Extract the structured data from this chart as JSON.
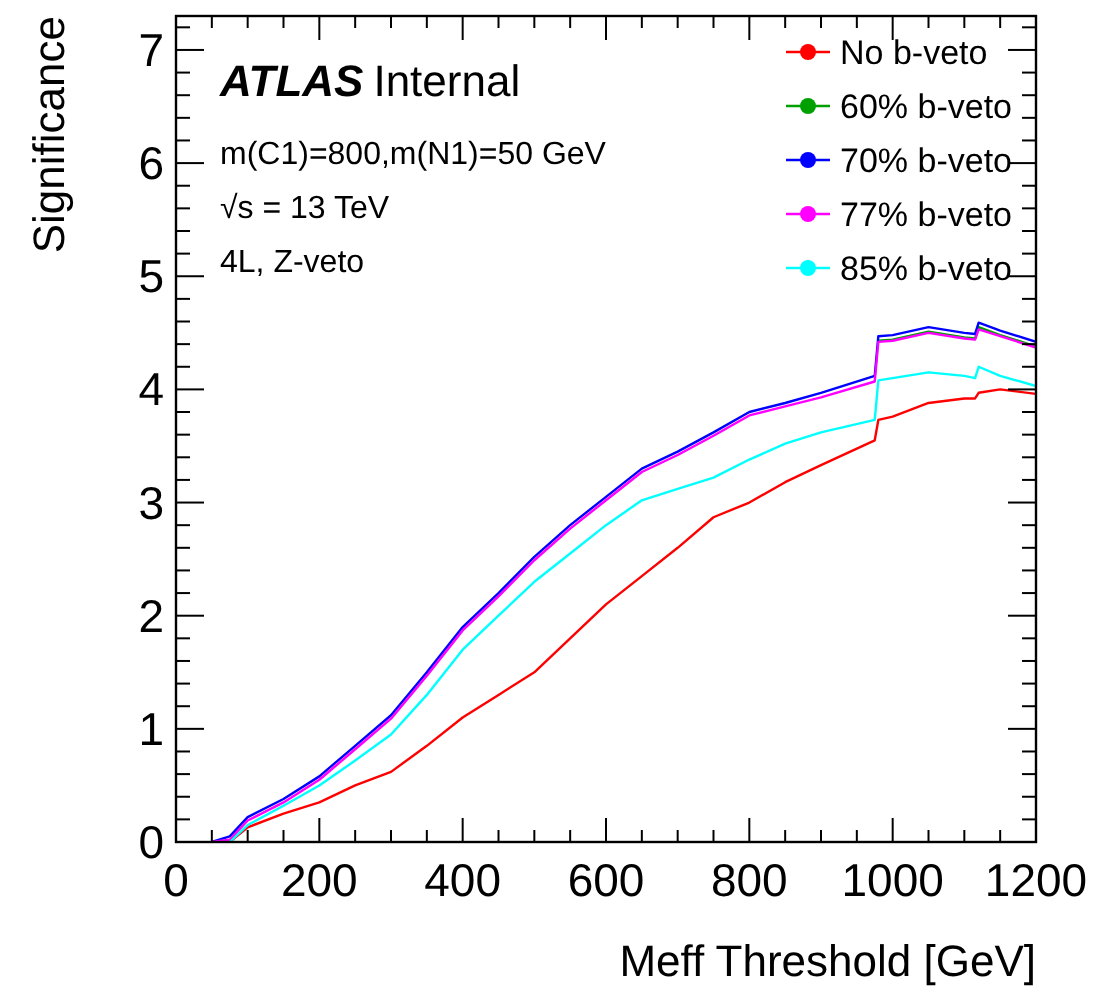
{
  "chart_data": {
    "type": "line",
    "xlabel": "Meff Threshold [GeV]",
    "ylabel": "Significance",
    "annotations": [
      "ATLAS Internal",
      "m(C1)=800,m(N1)=50 GeV",
      "√s = 13 TeV",
      "4L, Z-veto"
    ],
    "x": [
      50,
      75,
      100,
      150,
      200,
      250,
      300,
      350,
      400,
      450,
      500,
      550,
      600,
      650,
      700,
      750,
      800,
      850,
      900,
      975,
      980,
      1000,
      1050,
      1100,
      1115,
      1120,
      1150,
      1200
    ],
    "series": [
      {
        "name": "No b-veto",
        "color": "#ff0000",
        "values": [
          0,
          0,
          0.13,
          0.25,
          0.35,
          0.5,
          0.62,
          0.85,
          1.1,
          1.3,
          1.5,
          1.8,
          2.1,
          2.35,
          2.6,
          2.87,
          3.0,
          3.18,
          3.33,
          3.55,
          3.73,
          3.76,
          3.88,
          3.92,
          3.92,
          3.97,
          4.0,
          3.96
        ]
      },
      {
        "name": "60% b-veto",
        "color": "#00a000",
        "values": [
          null,
          null,
          null,
          null,
          null,
          null,
          null,
          null,
          null,
          null,
          null,
          null,
          null,
          null,
          null,
          null,
          null,
          null,
          null,
          null,
          4.43,
          4.44,
          4.51,
          4.46,
          4.45,
          4.55,
          4.48,
          4.38
        ]
      },
      {
        "name": "70% b-veto",
        "color": "#0000ff",
        "values": [
          0,
          0.05,
          0.22,
          0.38,
          0.58,
          0.85,
          1.12,
          1.5,
          1.9,
          2.2,
          2.52,
          2.8,
          3.05,
          3.3,
          3.45,
          3.62,
          3.8,
          3.88,
          3.97,
          4.12,
          4.47,
          4.48,
          4.55,
          4.5,
          4.49,
          4.59,
          4.52,
          4.42
        ]
      },
      {
        "name": "77% b-veto",
        "color": "#ff00ff",
        "values": [
          0,
          0.02,
          0.19,
          0.35,
          0.55,
          0.82,
          1.09,
          1.47,
          1.87,
          2.17,
          2.49,
          2.77,
          3.02,
          3.27,
          3.42,
          3.59,
          3.77,
          3.85,
          3.93,
          4.07,
          4.42,
          4.43,
          4.5,
          4.45,
          4.44,
          4.53,
          4.47,
          4.37
        ]
      },
      {
        "name": "85% b-veto",
        "color": "#00ffff",
        "values": [
          null,
          0,
          0.15,
          0.32,
          0.5,
          0.72,
          0.95,
          1.3,
          1.7,
          2.0,
          2.3,
          2.55,
          2.8,
          3.02,
          3.12,
          3.22,
          3.38,
          3.52,
          3.62,
          3.73,
          4.08,
          4.1,
          4.15,
          4.12,
          4.1,
          4.2,
          4.12,
          4.03
        ]
      }
    ],
    "xlim": [
      0,
      1200
    ],
    "ylim": [
      0,
      7.3
    ],
    "xticks": [
      0,
      {
        "value": 50,
        "label": null
      },
      {
        "value": 100,
        "label": null
      },
      {
        "value": 150,
        "label": null
      },
      200,
      {
        "value": 250,
        "label": null
      },
      {
        "value": 300,
        "label": null
      },
      {
        "value": 350,
        "label": null
      },
      400,
      {
        "value": 450,
        "label": null
      },
      {
        "value": 500,
        "label": null
      },
      {
        "value": 550,
        "label": null
      },
      600,
      {
        "value": 650,
        "label": null
      },
      {
        "value": 700,
        "label": null
      },
      {
        "value": 750,
        "label": null
      },
      800,
      {
        "value": 850,
        "label": null
      },
      {
        "value": 900,
        "label": null
      },
      {
        "value": 950,
        "label": null
      },
      1000,
      {
        "value": 1050,
        "label": null
      },
      {
        "value": 1100,
        "label": null
      },
      {
        "value": 1150,
        "label": null
      },
      1200
    ],
    "yticks": [
      0,
      {
        "value": 0.2,
        "label": null
      },
      {
        "value": 0.4,
        "label": null
      },
      {
        "value": 0.6,
        "label": null
      },
      {
        "value": 0.8,
        "label": null
      },
      1,
      {
        "value": 1.2,
        "label": null
      },
      {
        "value": 1.4,
        "label": null
      },
      {
        "value": 1.6,
        "label": null
      },
      {
        "value": 1.8,
        "label": null
      },
      2,
      {
        "value": 2.2,
        "label": null
      },
      {
        "value": 2.4,
        "label": null
      },
      {
        "value": 2.6,
        "label": null
      },
      {
        "value": 2.8,
        "label": null
      },
      3,
      {
        "value": 3.2,
        "label": null
      },
      {
        "value": 3.4,
        "label": null
      },
      {
        "value": 3.6,
        "label": null
      },
      {
        "value": 3.8,
        "label": null
      },
      4,
      {
        "value": 4.2,
        "label": null
      },
      {
        "value": 4.4,
        "label": null
      },
      {
        "value": 4.6,
        "label": null
      },
      {
        "value": 4.8,
        "label": null
      },
      5,
      {
        "value": 5.2,
        "label": null
      },
      {
        "value": 5.4,
        "label": null
      },
      {
        "value": 5.6,
        "label": null
      },
      {
        "value": 5.8,
        "label": null
      },
      6,
      {
        "value": 6.2,
        "label": null
      },
      {
        "value": 6.4,
        "label": null
      },
      {
        "value": 6.6,
        "label": null
      },
      {
        "value": 6.8,
        "label": null
      },
      7,
      {
        "value": 7.2,
        "label": null
      }
    ],
    "legend": "top right",
    "grid": false,
    "line_style": "solid"
  }
}
